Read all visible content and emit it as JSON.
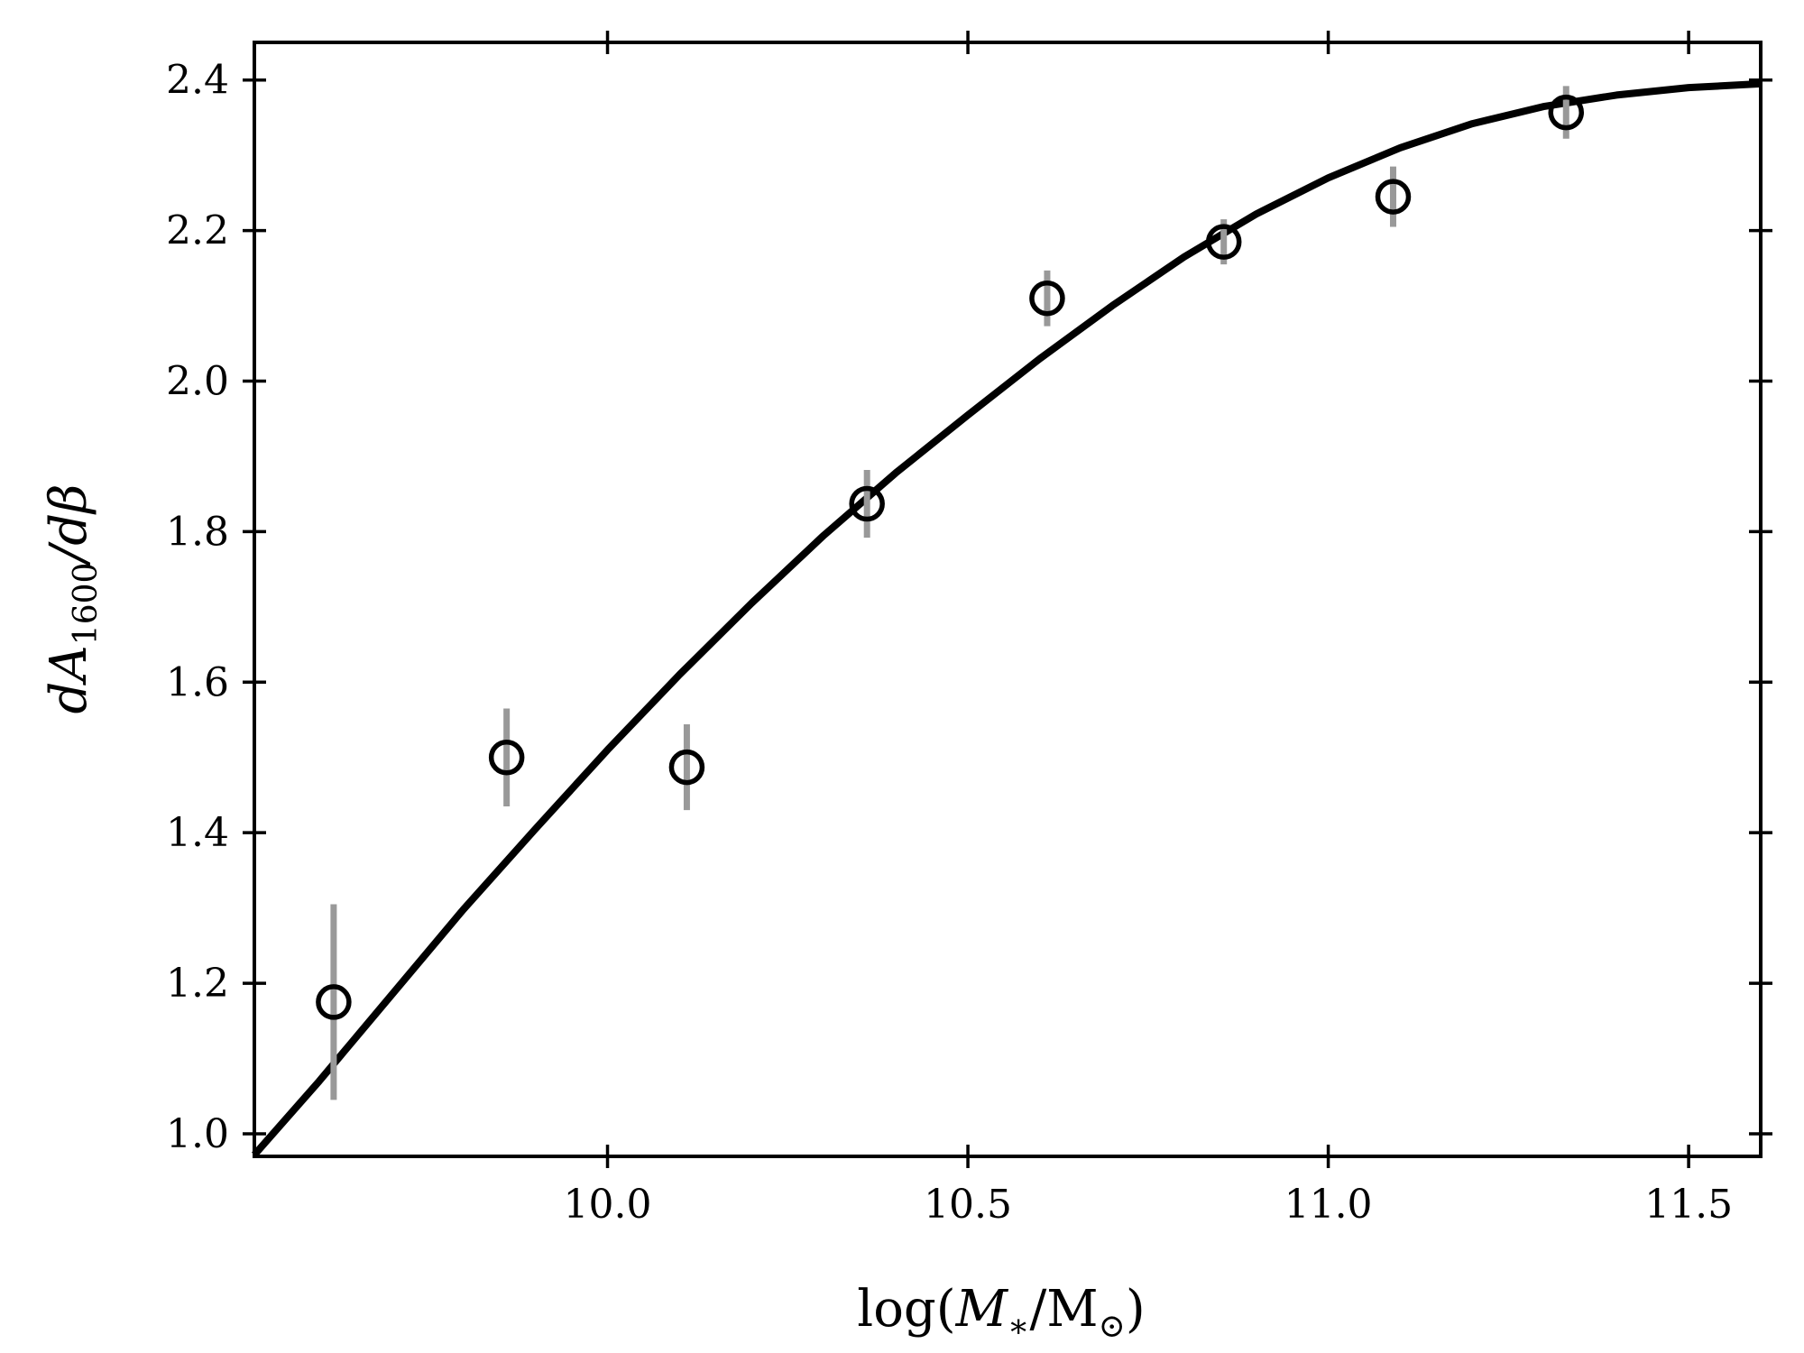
{
  "chart_data": {
    "type": "scatter",
    "title": "",
    "xlabel": {
      "pre": "log(",
      "var": "M",
      "sub": "∗",
      "mid": "/M",
      "sub2": "⊙",
      "post": ")"
    },
    "ylabel": {
      "d1": "dA",
      "sub": "1600",
      "rest": "/dβ"
    },
    "xlim": [
      9.51,
      11.6
    ],
    "ylim": [
      0.97,
      2.45
    ],
    "xticks": [
      10.0,
      10.5,
      11.0,
      11.5
    ],
    "xtick_labels": [
      "10.0",
      "10.5",
      "11.0",
      "11.5"
    ],
    "yticks": [
      1.0,
      1.2,
      1.4,
      1.6,
      1.8,
      2.0,
      2.2,
      2.4
    ],
    "ytick_labels": [
      "1.0",
      "1.2",
      "1.4",
      "1.6",
      "1.8",
      "2.0",
      "2.2",
      "2.4"
    ],
    "grid": false,
    "points": {
      "x": [
        9.62,
        9.86,
        10.11,
        10.36,
        10.61,
        10.855,
        11.09,
        11.33
      ],
      "y": [
        1.175,
        1.5,
        1.487,
        1.837,
        2.11,
        2.185,
        2.245,
        2.357
      ],
      "yerr": [
        0.13,
        0.065,
        0.057,
        0.045,
        0.037,
        0.03,
        0.04,
        0.035
      ]
    },
    "fit_curve": {
      "x": [
        9.51,
        9.6,
        9.7,
        9.8,
        9.9,
        10.0,
        10.1,
        10.2,
        10.3,
        10.4,
        10.5,
        10.6,
        10.7,
        10.8,
        10.9,
        11.0,
        11.1,
        11.2,
        11.3,
        11.4,
        11.5,
        11.6
      ],
      "y": [
        0.972,
        1.07,
        1.184,
        1.298,
        1.405,
        1.51,
        1.61,
        1.705,
        1.795,
        1.878,
        1.955,
        2.03,
        2.1,
        2.165,
        2.222,
        2.27,
        2.31,
        2.342,
        2.365,
        2.38,
        2.39,
        2.395
      ]
    },
    "colors": {
      "marker": "#000000",
      "errorbar": "#999999",
      "line": "#000000"
    }
  }
}
